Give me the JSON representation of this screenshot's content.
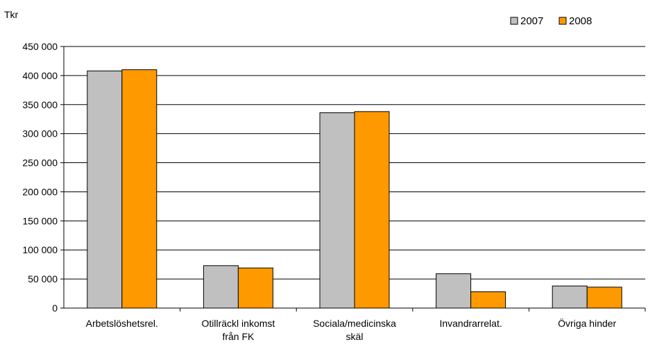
{
  "chart_data": {
    "type": "bar",
    "title": "",
    "ylabel": "Tkr",
    "xlabel": "",
    "categories": [
      [
        "Arbetslöshetsrel."
      ],
      [
        "Otillräckl inkomst",
        "från FK"
      ],
      [
        "Sociala/medicinska",
        "skäl"
      ],
      [
        "Invandrarrelat."
      ],
      [
        "Övriga hinder"
      ]
    ],
    "series": [
      {
        "name": "2007",
        "color": "#c0c0c0",
        "values": [
          408000,
          73000,
          336000,
          59000,
          38000
        ]
      },
      {
        "name": "2008",
        "color": "#ff9900",
        "values": [
          410000,
          69000,
          338000,
          28000,
          36000
        ]
      }
    ],
    "ylim": [
      0,
      450000
    ],
    "yticks": [
      0,
      50000,
      100000,
      150000,
      200000,
      250000,
      300000,
      350000,
      400000,
      450000
    ],
    "ytick_labels": [
      "0",
      "50 000",
      "100 000",
      "150 000",
      "200 000",
      "250 000",
      "300 000",
      "350 000",
      "400 000",
      "450 000"
    ],
    "grid": true,
    "legend_position": "top-right"
  }
}
